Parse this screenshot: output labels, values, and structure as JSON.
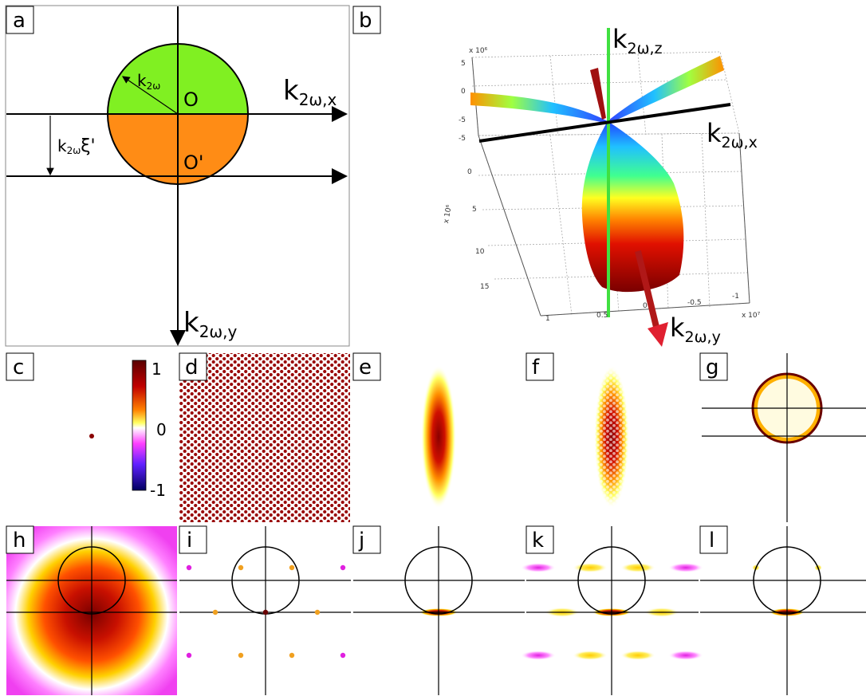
{
  "panels": {
    "a": {
      "label": "a",
      "k_circle": "k",
      "k_circle_sub": "2ω",
      "origin": "O",
      "origin_shift": "O'",
      "shift_k": "k",
      "shift_sub": "2ω",
      "shift_xi": "ξ'",
      "axis_x": "k",
      "axis_x_sub": "2ω,x",
      "axis_y": "k",
      "axis_y_sub": "2ω,y",
      "colors": {
        "upper": "#80f022",
        "lower": "#ff8c15"
      }
    },
    "b": {
      "label": "b",
      "axis_z": "k",
      "axis_z_sub": "2ω,z",
      "axis_x": "k",
      "axis_x_sub": "2ω,x",
      "axis_y": "k",
      "axis_y_sub": "2ω,y",
      "exp_top": "x 10⁶",
      "exp_left": "x 10⁶",
      "exp_right": "x 10⁷",
      "ticks_z": [
        "5",
        "0",
        "-5"
      ],
      "ticks_y": [
        "-5",
        "0",
        "5",
        "10",
        "15"
      ],
      "ticks_x": [
        "1",
        "0.5",
        "0",
        "-0.5",
        "-1"
      ]
    },
    "c": {
      "label": "c",
      "colorbar_ticks": [
        "1",
        "0",
        "-1"
      ]
    },
    "d": {
      "label": "d"
    },
    "e": {
      "label": "e"
    },
    "f": {
      "label": "f"
    },
    "g": {
      "label": "g"
    },
    "h": {
      "label": "h"
    },
    "i": {
      "label": "i"
    },
    "j": {
      "label": "j"
    },
    "k": {
      "label": "k"
    },
    "l": {
      "label": "l"
    }
  }
}
